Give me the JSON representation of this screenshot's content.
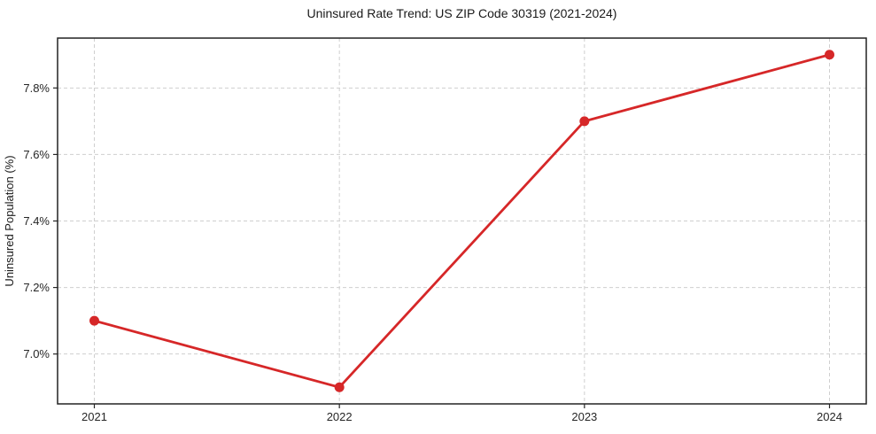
{
  "page": {
    "background_color": "#ffffff"
  },
  "chart_data": {
    "type": "line",
    "title": "Uninsured Rate Trend: US ZIP Code 30319 (2021-2024)",
    "xlabel": "",
    "ylabel": "Uninsured Population (%)",
    "x": [
      2021,
      2022,
      2023,
      2024
    ],
    "values": [
      7.1,
      6.9,
      7.7,
      7.9
    ],
    "xticks": [
      {
        "value": 2021,
        "label": "2021"
      },
      {
        "value": 2022,
        "label": "2022"
      },
      {
        "value": 2023,
        "label": "2023"
      },
      {
        "value": 2024,
        "label": "2024"
      }
    ],
    "yticks": [
      {
        "value": 7.0,
        "label": "7.0%"
      },
      {
        "value": 7.2,
        "label": "7.2%"
      },
      {
        "value": 7.4,
        "label": "7.4%"
      },
      {
        "value": 7.6,
        "label": "7.6%"
      },
      {
        "value": 7.8,
        "label": "7.8%"
      }
    ],
    "xlim": [
      2020.85,
      2024.15
    ],
    "ylim": [
      6.85,
      7.95
    ],
    "grid": true,
    "grid_style": "dashed",
    "grid_color": "#cfcfcf",
    "legend_position": "none",
    "line_color": "#d62728",
    "marker": "circle"
  }
}
